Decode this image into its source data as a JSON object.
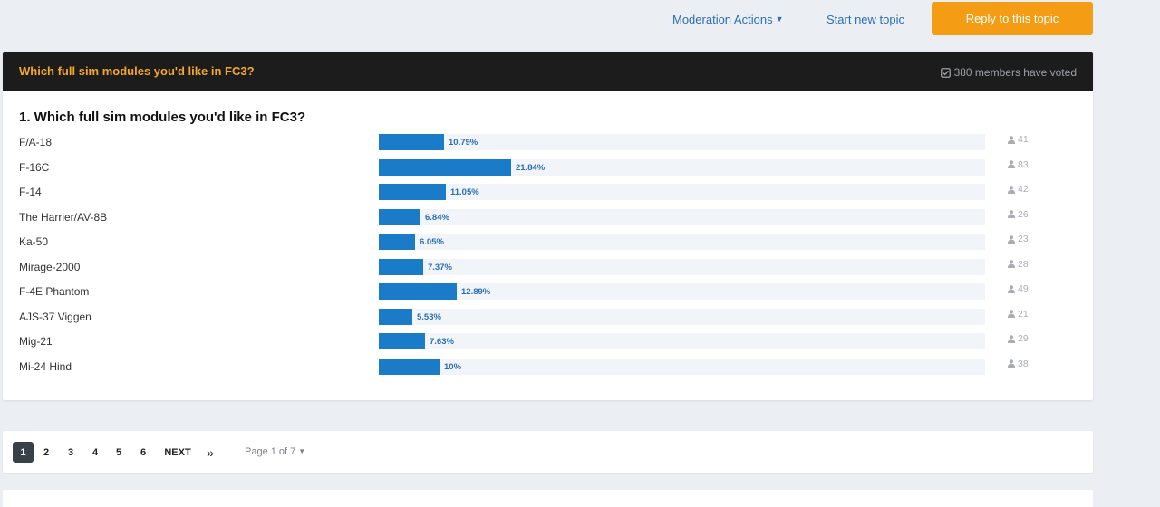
{
  "topbar": {
    "moderation_actions": "Moderation Actions",
    "start_new_topic": "Start new topic",
    "reply": "Reply to this topic"
  },
  "poll": {
    "title": "Which full sim modules you'd like in FC3?",
    "voted": "380 members have voted",
    "question": "1. Which full sim modules you'd like in FC3?",
    "options": [
      {
        "label": "F/A-18",
        "pct_text": "10.79%",
        "pct": 10.79,
        "votes": "41"
      },
      {
        "label": "F-16C",
        "pct_text": "21.84%",
        "pct": 21.84,
        "votes": "83"
      },
      {
        "label": "F-14",
        "pct_text": "11.05%",
        "pct": 11.05,
        "votes": "42"
      },
      {
        "label": "The Harrier/AV-8B",
        "pct_text": "6.84%",
        "pct": 6.84,
        "votes": "26"
      },
      {
        "label": "Ka-50",
        "pct_text": "6.05%",
        "pct": 6.05,
        "votes": "23"
      },
      {
        "label": "Mirage-2000",
        "pct_text": "7.37%",
        "pct": 7.37,
        "votes": "28"
      },
      {
        "label": "F-4E Phantom",
        "pct_text": "12.89%",
        "pct": 12.89,
        "votes": "49"
      },
      {
        "label": "AJS-37 Viggen",
        "pct_text": "5.53%",
        "pct": 5.53,
        "votes": "21"
      },
      {
        "label": "Mig-21",
        "pct_text": "7.63%",
        "pct": 7.63,
        "votes": "29"
      },
      {
        "label": "Mi-24 Hind",
        "pct_text": "10%",
        "pct": 10,
        "votes": "38"
      }
    ]
  },
  "pagination": {
    "pages": [
      "1",
      "2",
      "3",
      "4",
      "5",
      "6"
    ],
    "current": "1",
    "next": "NEXT",
    "last": "»",
    "page_of": "Page 1 of 7"
  },
  "colors": {
    "accent": "#f49d14",
    "bar": "#1a7bc8",
    "link": "#2a6fb0",
    "header_bg": "#1c1c1c"
  }
}
